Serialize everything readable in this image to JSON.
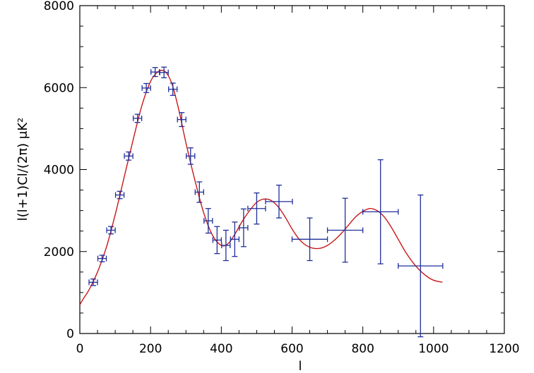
{
  "chart_data": {
    "type": "scatter",
    "title": "",
    "xlabel": "l",
    "ylabel": "l(l+1)Cl/(2π) μK²",
    "xlim": [
      0,
      1200
    ],
    "ylim": [
      0,
      8000
    ],
    "xticks": [
      0,
      200,
      400,
      600,
      800,
      1000,
      1200
    ],
    "yticks": [
      0,
      2000,
      4000,
      6000,
      8000
    ],
    "grid": false,
    "legend": "none",
    "colors": {
      "points": "#1f2f9a",
      "model": "#c81818",
      "axes": "#000000"
    },
    "series": [
      {
        "kind": "errorbar",
        "points": [
          {
            "x": 38,
            "y": 1250,
            "xerr": 12,
            "yerr": 80
          },
          {
            "x": 63,
            "y": 1830,
            "xerr": 12,
            "yerr": 80
          },
          {
            "x": 88,
            "y": 2520,
            "xerr": 12,
            "yerr": 90
          },
          {
            "x": 113,
            "y": 3380,
            "xerr": 12,
            "yerr": 90
          },
          {
            "x": 138,
            "y": 4330,
            "xerr": 12,
            "yerr": 100
          },
          {
            "x": 163,
            "y": 5250,
            "xerr": 12,
            "yerr": 100
          },
          {
            "x": 188,
            "y": 5990,
            "xerr": 12,
            "yerr": 110
          },
          {
            "x": 213,
            "y": 6380,
            "xerr": 12,
            "yerr": 110
          },
          {
            "x": 238,
            "y": 6370,
            "xerr": 12,
            "yerr": 130
          },
          {
            "x": 263,
            "y": 5960,
            "xerr": 12,
            "yerr": 150
          },
          {
            "x": 288,
            "y": 5220,
            "xerr": 12,
            "yerr": 170
          },
          {
            "x": 313,
            "y": 4330,
            "xerr": 12,
            "yerr": 200
          },
          {
            "x": 338,
            "y": 3450,
            "xerr": 12,
            "yerr": 250
          },
          {
            "x": 363,
            "y": 2750,
            "xerr": 12,
            "yerr": 300
          },
          {
            "x": 388,
            "y": 2280,
            "xerr": 12,
            "yerr": 330
          },
          {
            "x": 413,
            "y": 2150,
            "xerr": 12,
            "yerr": 370
          },
          {
            "x": 438,
            "y": 2300,
            "xerr": 12,
            "yerr": 420
          },
          {
            "x": 463,
            "y": 2580,
            "xerr": 12,
            "yerr": 460
          },
          {
            "x": 500,
            "y": 3050,
            "xerr": 25,
            "yerr": 380
          },
          {
            "x": 563,
            "y": 3220,
            "xerr": 38,
            "yerr": 400
          },
          {
            "x": 650,
            "y": 2300,
            "xerr": 50,
            "yerr": 520
          },
          {
            "x": 750,
            "y": 2520,
            "xerr": 50,
            "yerr": 780
          },
          {
            "x": 850,
            "y": 2970,
            "xerr": 50,
            "yerr": 1270
          },
          {
            "x": 963,
            "y": 1650,
            "xerr": 63,
            "yerr": 1730
          }
        ]
      },
      {
        "kind": "line",
        "x": [
          0,
          10,
          25,
          50,
          75,
          100,
          125,
          150,
          175,
          200,
          220,
          240,
          260,
          280,
          300,
          325,
          350,
          375,
          400,
          420,
          440,
          460,
          480,
          500,
          520,
          540,
          560,
          580,
          600,
          620,
          640,
          660,
          680,
          700,
          720,
          740,
          760,
          780,
          800,
          820,
          840,
          860,
          880,
          900,
          920,
          940,
          960,
          980,
          1000,
          1025
        ],
        "y": [
          700,
          850,
          1050,
          1500,
          2100,
          2900,
          3800,
          4700,
          5550,
          6150,
          6380,
          6400,
          6100,
          5450,
          4650,
          3750,
          2950,
          2400,
          2150,
          2200,
          2450,
          2750,
          3000,
          3200,
          3280,
          3250,
          3100,
          2850,
          2550,
          2300,
          2150,
          2080,
          2080,
          2150,
          2280,
          2450,
          2650,
          2850,
          2980,
          3050,
          3000,
          2850,
          2600,
          2300,
          2000,
          1750,
          1550,
          1400,
          1300,
          1250
        ]
      }
    ]
  }
}
